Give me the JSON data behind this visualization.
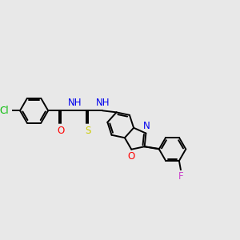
{
  "bg_color": "#e8e8e8",
  "bond_color": "#000000",
  "bond_width": 1.4,
  "dbo": 0.055,
  "atom_colors": {
    "Cl": "#00bb00",
    "O": "#ff0000",
    "N": "#0000ee",
    "S": "#cccc00",
    "F": "#cc44cc"
  },
  "fs": 8.5,
  "figsize": [
    3.0,
    3.0
  ],
  "dpi": 100,
  "xlim": [
    -2.6,
    4.2
  ],
  "ylim": [
    -1.6,
    1.4
  ]
}
